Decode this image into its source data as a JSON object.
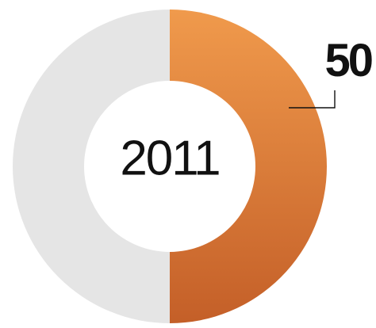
{
  "chart_data": {
    "type": "pie",
    "style": "donut",
    "center_label": "2011",
    "slices": [
      {
        "label": "",
        "value": 50,
        "value_label": "50",
        "color": "#f09a4c",
        "color_dark": "#c45f28"
      },
      {
        "label": "",
        "value": 50,
        "value_label": "",
        "color": "#e5e5e5"
      }
    ],
    "start_angle_deg": 0,
    "direction": "clockwise",
    "total": 100
  }
}
